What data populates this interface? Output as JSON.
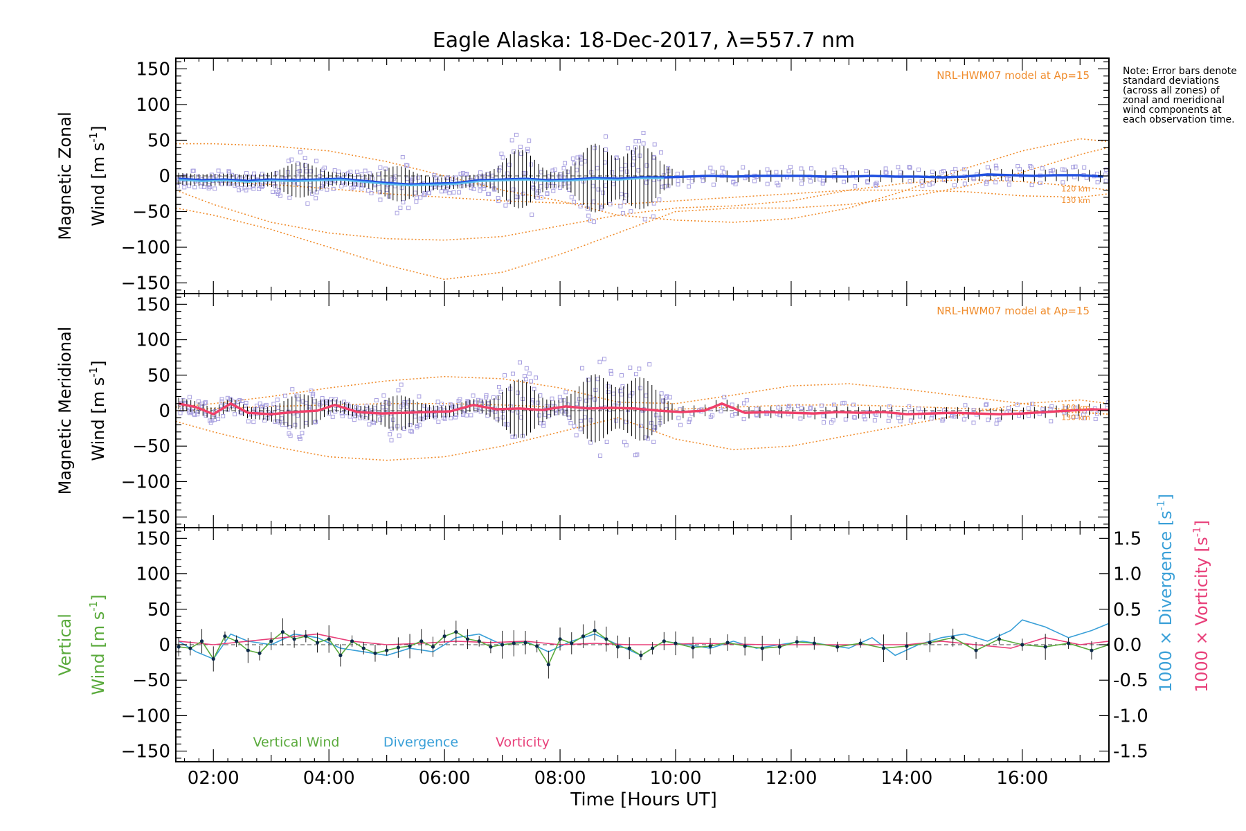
{
  "title": "Eagle Alaska: 18-Dec-2017, λ=557.7 nm",
  "note": "Note: Error bars denote standard deviations (across all zones) of zonal and meridional wind components at each observation time.",
  "colors": {
    "zonal": "#2050e0",
    "zonal_model_ap": "#5ec8f0",
    "meridional": "#f0406a",
    "scatter": "#a8a0e0",
    "model": "#f08c2c",
    "vertical": "#5aaa3c",
    "divergence": "#3aa0d8",
    "vorticity": "#e8407a",
    "errorbar": "#000000"
  },
  "chart_data": {
    "x_label": "Time [Hours UT]",
    "x_range": [
      1.35,
      17.5
    ],
    "x_ticks": [
      "02:00",
      "04:00",
      "06:00",
      "08:00",
      "10:00",
      "12:00",
      "14:00",
      "16:00"
    ],
    "x_tick_values": [
      2,
      4,
      6,
      8,
      10,
      12,
      14,
      16
    ],
    "panels": [
      {
        "name": "zonal",
        "ylabel_line1": "Magnetic Zonal",
        "ylabel_line2": "Wind [m s",
        "ylabel_sup": "-1",
        "ylabel_close": "]",
        "ylim": [
          -165,
          165
        ],
        "y_ticks": [
          150,
          100,
          50,
          0,
          -50,
          -100,
          -150
        ],
        "model_label": "NRL-HWM07 model at Ap=15",
        "altitude_labels": [
          "120 km",
          "130 km"
        ],
        "series": [
          {
            "name": "zonal",
            "x": [
              1.4,
              1.8,
              2.2,
              2.6,
              3.0,
              3.4,
              3.8,
              4.2,
              4.6,
              5.0,
              5.4,
              5.8,
              6.2,
              6.6,
              7.0,
              7.4,
              7.8,
              8.2,
              8.6,
              9.0,
              9.4,
              9.8,
              10.2,
              10.6,
              11.0,
              11.4,
              11.8,
              12.2,
              12.6,
              13.0,
              13.4,
              13.8,
              14.2,
              14.6,
              15.0,
              15.4,
              15.8,
              16.2,
              16.6,
              17.0,
              17.4
            ],
            "y": [
              -4,
              -6,
              -5,
              -7,
              -5,
              -6,
              -5,
              -4,
              -7,
              -10,
              -12,
              -11,
              -10,
              -6,
              -5,
              -4,
              -6,
              -5,
              -3,
              -4,
              -2,
              -2,
              -1,
              0,
              -1,
              0,
              0,
              0,
              -1,
              -1,
              0,
              -1,
              -1,
              -2,
              -1,
              2,
              1,
              0,
              1,
              1,
              -1
            ]
          }
        ],
        "model_curves": [
          {
            "x": [
              1.35,
              2,
              3,
              4,
              5,
              6,
              7,
              8,
              9,
              10,
              11,
              12,
              13,
              14,
              15,
              16,
              17,
              17.5
            ],
            "y": [
              -45,
              -55,
              -75,
              -100,
              -125,
              -145,
              -135,
              -110,
              -80,
              -50,
              -45,
              -45,
              -40,
              -30,
              -15,
              5,
              30,
              40
            ]
          },
          {
            "x": [
              1.35,
              2,
              3,
              4,
              5,
              6,
              7,
              8,
              9,
              10,
              11,
              12,
              13,
              14,
              15,
              16,
              17,
              17.5
            ],
            "y": [
              -20,
              -40,
              -65,
              -80,
              -88,
              -90,
              -85,
              -70,
              -55,
              -45,
              -42,
              -35,
              -20,
              -10,
              -5,
              -8,
              -15,
              -20
            ]
          },
          {
            "x": [
              1.35,
              2,
              3,
              4,
              5,
              6,
              7,
              8,
              9,
              10,
              11,
              12,
              13,
              14,
              15,
              16,
              17,
              17.5
            ],
            "y": [
              45,
              45,
              42,
              35,
              20,
              0,
              -20,
              -35,
              -55,
              -62,
              -65,
              -60,
              -45,
              -20,
              10,
              35,
              52,
              48
            ]
          },
          {
            "x": [
              1.35,
              2,
              3,
              4,
              5,
              6,
              7,
              8,
              9,
              10,
              11,
              12,
              13,
              14,
              15,
              16,
              17,
              17.5
            ],
            "y": [
              -5,
              -8,
              -12,
              -18,
              -25,
              -30,
              -35,
              -38,
              -40,
              -35,
              -30,
              -25,
              -20,
              -20,
              -22,
              -28,
              -30,
              -25
            ]
          }
        ]
      },
      {
        "name": "meridional",
        "ylabel_line1": "Magnetic Meridional",
        "ylabel_line2": "Wind [m s",
        "ylabel_sup": "-1",
        "ylabel_close": "]",
        "ylim": [
          -165,
          165
        ],
        "y_ticks": [
          150,
          100,
          50,
          0,
          -50,
          -100,
          -150
        ],
        "model_label": "NRL-HWM07 model at Ap=15",
        "altitude_labels": [
          "120 km",
          "130 km"
        ],
        "series": [
          {
            "name": "meridional",
            "x": [
              1.4,
              1.7,
              2.0,
              2.3,
              2.6,
              3.0,
              3.4,
              3.8,
              4.1,
              4.5,
              4.9,
              5.3,
              5.7,
              6.1,
              6.5,
              6.9,
              7.3,
              7.7,
              8.1,
              8.5,
              8.9,
              9.3,
              9.7,
              10.1,
              10.5,
              10.8,
              11.2,
              11.6,
              12.0,
              12.4,
              12.8,
              13.2,
              13.6,
              14.0,
              14.4,
              14.8,
              15.2,
              15.6,
              16.0,
              16.4,
              16.8,
              17.2,
              17.5
            ],
            "y": [
              10,
              5,
              -5,
              10,
              -3,
              -5,
              -2,
              0,
              8,
              -2,
              -4,
              -3,
              -2,
              -1,
              8,
              2,
              3,
              1,
              6,
              3,
              4,
              3,
              0,
              -2,
              0,
              10,
              -3,
              -2,
              -3,
              -4,
              -2,
              -3,
              -2,
              -5,
              -4,
              -3,
              -4,
              -5,
              -4,
              -2,
              0,
              2,
              1
            ]
          }
        ],
        "model_curves": [
          {
            "x": [
              1.35,
              2,
              3,
              4,
              5,
              6,
              7,
              8,
              9,
              10,
              11,
              12,
              13,
              14,
              15,
              16,
              17,
              17.5
            ],
            "y": [
              -15,
              -30,
              -50,
              -65,
              -70,
              -65,
              -50,
              -30,
              -10,
              -40,
              -55,
              -50,
              -35,
              -20,
              -5,
              10,
              15,
              10
            ]
          },
          {
            "x": [
              1.35,
              2,
              3,
              4,
              5,
              6,
              7,
              8,
              9,
              10,
              11,
              12,
              13,
              14,
              15,
              16,
              17,
              17.5
            ],
            "y": [
              5,
              10,
              20,
              32,
              42,
              48,
              45,
              32,
              12,
              10,
              22,
              35,
              38,
              30,
              20,
              10,
              -2,
              -5
            ]
          },
          {
            "x": [
              1.35,
              2,
              3,
              4,
              5,
              6,
              7,
              8,
              9,
              10,
              11,
              12,
              13,
              14,
              15,
              16,
              17,
              17.5
            ],
            "y": [
              0,
              3,
              6,
              8,
              10,
              10,
              8,
              5,
              2,
              2,
              5,
              8,
              8,
              6,
              3,
              0,
              -3,
              -5
            ]
          }
        ]
      },
      {
        "name": "vertical",
        "ylabel_line1": "Vertical",
        "ylabel_line2": "Wind [m s",
        "ylabel_sup": "-1",
        "ylabel_close": "]",
        "ylim": [
          -165,
          165
        ],
        "y_ticks": [
          150,
          100,
          50,
          0,
          -50,
          -100,
          -150
        ],
        "right_axis": {
          "ylim": [
            -1.65,
            1.65
          ],
          "ticks": [
            "1.5",
            "1.0",
            "0.5",
            "0.0",
            "-0.5",
            "-1.0",
            "-1.5"
          ],
          "tick_values": [
            1.5,
            1.0,
            0.5,
            0.0,
            -0.5,
            -1.0,
            -1.5
          ],
          "label_div": "1000 × Divergence [s",
          "label_vor": "1000 × Vorticity [s",
          "label_sup": "-1",
          "label_close": "]"
        },
        "legend": [
          "Vertical Wind",
          "Divergence",
          "Vorticity"
        ],
        "series": [
          {
            "name": "Vertical Wind",
            "x": [
              1.4,
              1.6,
              1.8,
              2.0,
              2.2,
              2.4,
              2.6,
              2.8,
              3.0,
              3.2,
              3.4,
              3.6,
              3.8,
              4.0,
              4.2,
              4.4,
              4.6,
              4.8,
              5.0,
              5.2,
              5.4,
              5.6,
              5.8,
              6.0,
              6.2,
              6.4,
              6.6,
              6.8,
              7.0,
              7.2,
              7.4,
              7.6,
              7.8,
              8.0,
              8.2,
              8.4,
              8.6,
              8.8,
              9.0,
              9.2,
              9.4,
              9.6,
              9.8,
              10.0,
              10.3,
              10.6,
              10.9,
              11.2,
              11.5,
              11.8,
              12.1,
              12.4,
              12.8,
              13.2,
              13.6,
              14.0,
              14.4,
              14.8,
              15.2,
              15.6,
              16.0,
              16.4,
              16.8,
              17.2,
              17.5
            ],
            "y": [
              -3,
              -5,
              5,
              -20,
              12,
              5,
              -8,
              -12,
              5,
              18,
              8,
              12,
              3,
              8,
              -15,
              5,
              -5,
              -12,
              -8,
              -4,
              -2,
              5,
              -3,
              12,
              18,
              8,
              5,
              -3,
              0,
              2,
              3,
              -2,
              -28,
              8,
              2,
              12,
              20,
              8,
              -3,
              -5,
              -15,
              -5,
              5,
              2,
              -4,
              -2,
              3,
              -2,
              -5,
              -3,
              4,
              2,
              -3,
              2,
              -5,
              -2,
              3,
              10,
              -8,
              8,
              0,
              -3,
              2,
              -8,
              0
            ]
          },
          {
            "name": "Divergence",
            "x": [
              1.4,
              1.7,
              2.0,
              2.3,
              2.6,
              3.0,
              3.4,
              3.8,
              4.2,
              4.6,
              5.0,
              5.4,
              5.8,
              6.2,
              6.6,
              7.0,
              7.4,
              7.8,
              8.2,
              8.6,
              9.0,
              9.4,
              9.8,
              10.2,
              10.6,
              11.0,
              11.4,
              11.8,
              12.2,
              12.6,
              13.0,
              13.4,
              13.8,
              14.2,
              14.6,
              15.0,
              15.4,
              15.8,
              16.0,
              16.4,
              16.8,
              17.2,
              17.5
            ],
            "y": [
              0.05,
              -0.1,
              -0.2,
              0.15,
              0.05,
              0.0,
              0.15,
              0.1,
              -0.05,
              -0.1,
              -0.15,
              -0.05,
              -0.1,
              0.1,
              0.15,
              0.0,
              0.05,
              -0.1,
              0.05,
              0.15,
              0.0,
              -0.15,
              0.05,
              0.0,
              -0.05,
              0.05,
              -0.05,
              0.0,
              0.05,
              0.0,
              -0.05,
              0.1,
              -0.15,
              0.0,
              0.1,
              0.15,
              0.05,
              0.2,
              0.35,
              0.25,
              0.1,
              0.2,
              0.3
            ]
          },
          {
            "name": "Vorticity",
            "x": [
              1.4,
              2.0,
              2.6,
              3.2,
              3.8,
              4.4,
              5.0,
              5.6,
              6.2,
              6.8,
              7.4,
              8.0,
              8.6,
              9.2,
              9.8,
              10.4,
              11.0,
              11.6,
              12.2,
              12.8,
              13.4,
              14.0,
              14.6,
              15.2,
              15.8,
              16.4,
              17.0,
              17.5
            ],
            "y": [
              0.05,
              0.0,
              0.05,
              0.1,
              0.15,
              0.05,
              0.0,
              0.02,
              0.05,
              0.03,
              0.05,
              0.0,
              0.02,
              0.0,
              0.0,
              0.02,
              0.01,
              0.0,
              0.0,
              0.0,
              0.0,
              0.0,
              0.05,
              0.0,
              -0.05,
              0.1,
              0.0,
              0.05
            ]
          }
        ]
      }
    ]
  }
}
